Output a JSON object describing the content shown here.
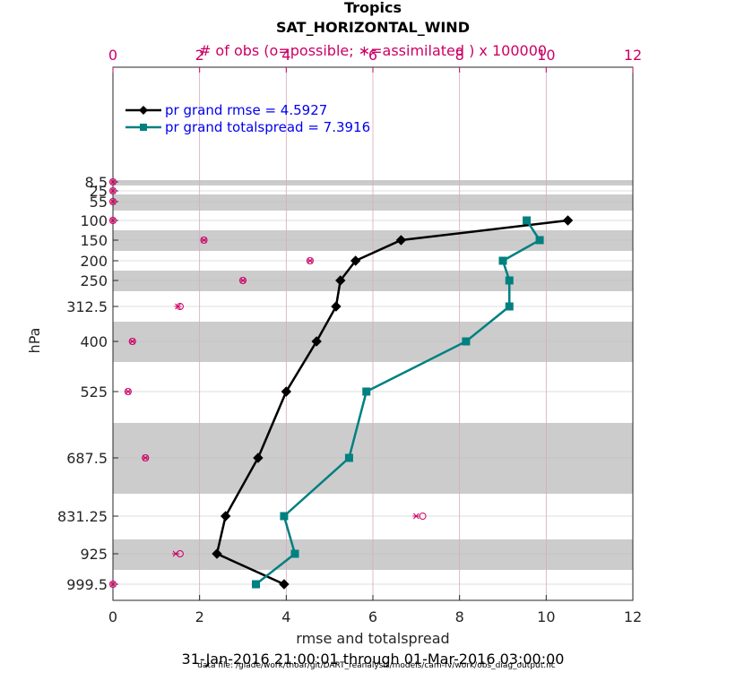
{
  "chart_data": {
    "type": "line",
    "title": "Tropics",
    "subtitle": "SAT_HORIZONTAL_WIND",
    "top_axis_label": "# of obs (o=possible; ∗=assimilated ) x 100000",
    "xlabel": "rmse and totalspread",
    "ylabel": "hPa",
    "date_range": "31-Jan-2016 21:00:01 through 01-Mar-2016 03:00:00",
    "footnote": "data file: /glade/work/thoar/git/DART_reanalysis/models/cam-fv/work/obs_diag_output.nc",
    "xlim": [
      0,
      12
    ],
    "top_xlim": [
      0,
      12
    ],
    "x_ticks": [
      "0",
      "2",
      "4",
      "6",
      "8",
      "10",
      "12"
    ],
    "top_x_ticks": [
      "0",
      "2",
      "4",
      "6",
      "8",
      "10",
      "12"
    ],
    "y_axis": "pressure (decreasing upward)",
    "y_ticks": [
      "8.5",
      "25",
      "55",
      "100",
      "150",
      "200",
      "250",
      "312.5",
      "400",
      "525",
      "687.5",
      "831.25",
      "925",
      "999.5"
    ],
    "pressure_levels": [
      8.5,
      25,
      55,
      100,
      150,
      200,
      250,
      312.5,
      400,
      525,
      687.5,
      831.25,
      925,
      999.5
    ],
    "colors": {
      "rmse": "#000000",
      "spread": "#008080",
      "obs": "#cc0066",
      "legend_text": "#0000ee",
      "band": "#cccccc"
    },
    "grid": true,
    "legend_placement": "top-left",
    "series": [
      {
        "name": "pr grand rmse = 4.5927",
        "color": "#000000",
        "marker": "diamond",
        "points": [
          [
            10.5,
            100
          ],
          [
            6.65,
            150
          ],
          [
            5.6,
            200
          ],
          [
            5.25,
            250
          ],
          [
            5.15,
            312.5
          ],
          [
            4.7,
            400
          ],
          [
            4.0,
            525
          ],
          [
            3.35,
            687.5
          ],
          [
            2.6,
            831.25
          ],
          [
            2.4,
            925
          ],
          [
            3.95,
            999.5
          ]
        ]
      },
      {
        "name": "pr grand totalspread = 7.3916",
        "color": "#008080",
        "marker": "square",
        "points": [
          [
            9.55,
            100
          ],
          [
            9.85,
            150
          ],
          [
            9.0,
            200
          ],
          [
            9.15,
            250
          ],
          [
            9.15,
            312.5
          ],
          [
            8.15,
            400
          ],
          [
            5.85,
            525
          ],
          [
            5.45,
            687.5
          ],
          [
            3.95,
            831.25
          ],
          [
            4.2,
            925
          ],
          [
            3.3,
            999.5
          ]
        ]
      }
    ],
    "obs_counts": {
      "possible": [
        [
          0,
          8.5
        ],
        [
          0,
          25
        ],
        [
          0,
          55
        ],
        [
          0,
          100
        ],
        [
          2.1,
          150
        ],
        [
          4.55,
          200
        ],
        [
          3.0,
          250
        ],
        [
          1.55,
          312.5
        ],
        [
          0.45,
          400
        ],
        [
          0.35,
          525
        ],
        [
          0.75,
          687.5
        ],
        [
          7.15,
          831.25
        ],
        [
          1.55,
          925
        ],
        [
          0,
          999.5
        ]
      ],
      "assimilated": [
        [
          0,
          8.5
        ],
        [
          0,
          25
        ],
        [
          0,
          55
        ],
        [
          0,
          100
        ],
        [
          2.1,
          150
        ],
        [
          4.55,
          200
        ],
        [
          3.0,
          250
        ],
        [
          1.5,
          312.5
        ],
        [
          0.45,
          400
        ],
        [
          0.35,
          525
        ],
        [
          0.75,
          687.5
        ],
        [
          7.0,
          831.25
        ],
        [
          1.45,
          925
        ],
        [
          0,
          999.5
        ]
      ]
    }
  }
}
